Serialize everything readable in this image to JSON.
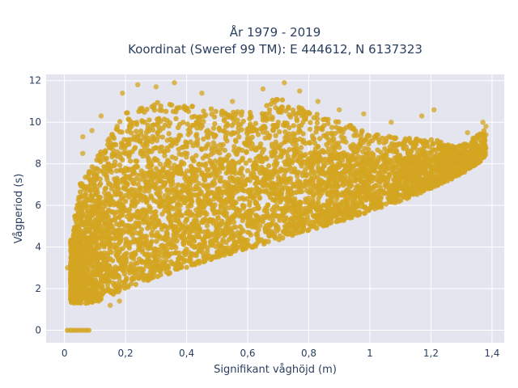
{
  "chart_data": {
    "type": "scatter",
    "title_line1": "År 1979 - 2019",
    "title_line2": "Koordinat (Sweref 99 TM): E 444612, N 6137323",
    "xlabel": "Signifikant våghöjd (m)",
    "ylabel": "Vågperiod (s)",
    "xlim": [
      -0.06,
      1.44
    ],
    "ylim": [
      -0.6,
      12.3
    ],
    "x_ticks": [
      0,
      0.2,
      0.4,
      0.6,
      0.8,
      1,
      1.2,
      1.4
    ],
    "x_tick_labels": [
      "0",
      "0,2",
      "0,4",
      "0,6",
      "0,8",
      "1",
      "1,2",
      "1,4"
    ],
    "y_ticks": [
      0,
      2,
      4,
      6,
      8,
      10,
      12
    ],
    "y_tick_labels": [
      "0",
      "2",
      "4",
      "6",
      "8",
      "10",
      "12"
    ],
    "grid": true,
    "marker_color": "#d4a520",
    "plot_background": "#e5e5f0",
    "envelope": {
      "lower": [
        [
          0.02,
          1.3
        ],
        [
          0.1,
          1.3
        ],
        [
          0.2,
          2.0
        ],
        [
          0.3,
          2.5
        ],
        [
          0.4,
          3.0
        ],
        [
          0.5,
          3.5
        ],
        [
          0.6,
          3.9
        ],
        [
          0.7,
          4.3
        ],
        [
          0.8,
          4.8
        ],
        [
          0.9,
          5.2
        ],
        [
          1.0,
          5.7
        ],
        [
          1.1,
          6.2
        ],
        [
          1.2,
          6.8
        ],
        [
          1.3,
          7.5
        ],
        [
          1.38,
          8.3
        ]
      ],
      "upper": [
        [
          0.02,
          4.5
        ],
        [
          0.05,
          7.5
        ],
        [
          0.1,
          8.8
        ],
        [
          0.15,
          10.0
        ],
        [
          0.2,
          11.2
        ],
        [
          0.3,
          11.7
        ],
        [
          0.4,
          11.5
        ],
        [
          0.5,
          11.3
        ],
        [
          0.6,
          11.1
        ],
        [
          0.7,
          11.8
        ],
        [
          0.8,
          11.0
        ],
        [
          0.9,
          10.5
        ],
        [
          1.0,
          9.8
        ],
        [
          1.1,
          9.5
        ],
        [
          1.2,
          9.4
        ],
        [
          1.3,
          9.0
        ],
        [
          1.38,
          9.8
        ]
      ]
    },
    "zero_period_points": [
      [
        0.01,
        0
      ],
      [
        0.02,
        0
      ],
      [
        0.03,
        0
      ],
      [
        0.04,
        0
      ],
      [
        0.05,
        0
      ],
      [
        0.06,
        0
      ],
      [
        0.07,
        0
      ],
      [
        0.08,
        0
      ]
    ],
    "outlier_points": [
      [
        0.01,
        3.0
      ],
      [
        0.06,
        8.5
      ],
      [
        0.06,
        9.3
      ],
      [
        0.09,
        9.6
      ],
      [
        0.12,
        10.3
      ],
      [
        0.19,
        11.4
      ],
      [
        0.24,
        11.8
      ],
      [
        0.3,
        11.7
      ],
      [
        0.36,
        11.9
      ],
      [
        0.45,
        11.4
      ],
      [
        0.55,
        11.0
      ],
      [
        0.65,
        11.6
      ],
      [
        0.72,
        11.9
      ],
      [
        0.77,
        11.5
      ],
      [
        0.83,
        11.0
      ],
      [
        0.9,
        10.6
      ],
      [
        0.98,
        10.4
      ],
      [
        1.07,
        10.0
      ],
      [
        1.17,
        10.3
      ],
      [
        1.21,
        10.6
      ],
      [
        1.32,
        9.5
      ],
      [
        1.37,
        10.0
      ],
      [
        1.38,
        9.8
      ],
      [
        0.15,
        1.2
      ],
      [
        0.18,
        1.4
      ]
    ]
  }
}
